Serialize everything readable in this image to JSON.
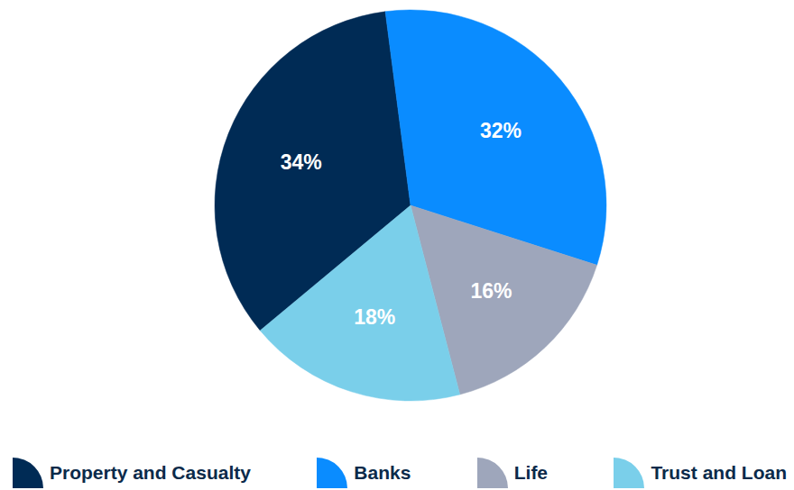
{
  "chart_data": {
    "type": "pie",
    "categories": [
      "Property and Casualty",
      "Banks",
      "Life",
      "Trust and Loan"
    ],
    "values": [
      34,
      32,
      16,
      18
    ],
    "value_labels": [
      "34%",
      "32%",
      "16%",
      "18%"
    ],
    "colors": [
      "#002b55",
      "#0a8cff",
      "#9ea6bb",
      "#7acfea"
    ],
    "data_labels": true,
    "legend": "bottom"
  }
}
